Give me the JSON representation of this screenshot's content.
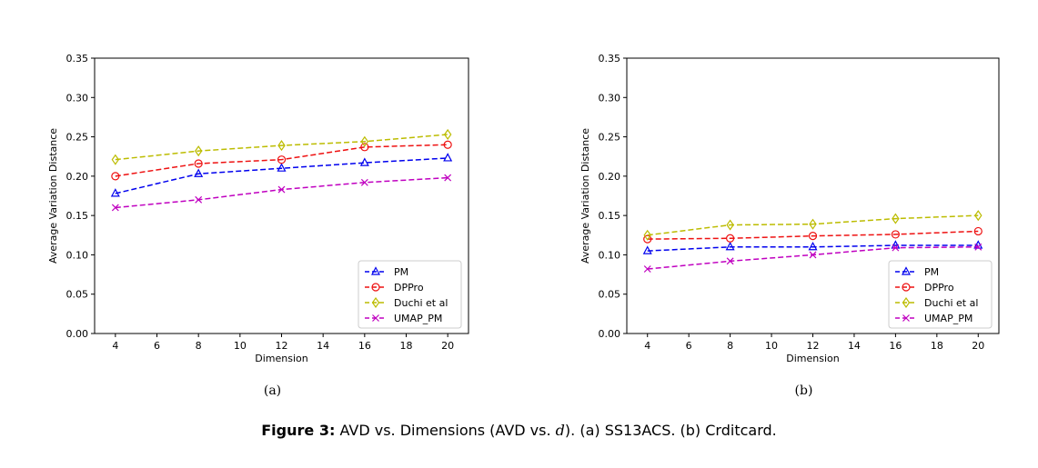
{
  "chart_data": [
    {
      "type": "line",
      "x": [
        4,
        8,
        12,
        16,
        20
      ],
      "xticks": [
        "4",
        "6",
        "8",
        "10",
        "12",
        "14",
        "16",
        "18",
        "20"
      ],
      "yticks": [
        "0.00",
        "0.05",
        "0.10",
        "0.15",
        "0.20",
        "0.25",
        "0.30",
        "0.35"
      ],
      "xlim": [
        3,
        21
      ],
      "ylim": [
        0,
        0.35
      ],
      "xlabel": "Dimension",
      "ylabel": "Average Variation Distance",
      "sublabel": "(a)",
      "legend_position": "lower-right",
      "series": [
        {
          "name": "PM",
          "color": "#0000ee",
          "marker": "triangle",
          "values": [
            0.178,
            0.203,
            0.21,
            0.217,
            0.223
          ]
        },
        {
          "name": "DPPro",
          "color": "#ee1111",
          "marker": "circle",
          "values": [
            0.2,
            0.216,
            0.221,
            0.237,
            0.24
          ]
        },
        {
          "name": "Duchi et al",
          "color": "#bcbc00",
          "marker": "diamond",
          "values": [
            0.221,
            0.232,
            0.239,
            0.244,
            0.253
          ]
        },
        {
          "name": "UMAP_PM",
          "color": "#c000c0",
          "marker": "x",
          "values": [
            0.16,
            0.17,
            0.183,
            0.192,
            0.198
          ]
        }
      ]
    },
    {
      "type": "line",
      "x": [
        4,
        8,
        12,
        16,
        20
      ],
      "xticks": [
        "4",
        "6",
        "8",
        "10",
        "12",
        "14",
        "16",
        "18",
        "20"
      ],
      "yticks": [
        "0.00",
        "0.05",
        "0.10",
        "0.15",
        "0.20",
        "0.25",
        "0.30",
        "0.35"
      ],
      "xlim": [
        3,
        21
      ],
      "ylim": [
        0,
        0.35
      ],
      "xlabel": "Dimension",
      "ylabel": "Average Variation Distance",
      "sublabel": "(b)",
      "legend_position": "lower-right",
      "series": [
        {
          "name": "PM",
          "color": "#0000ee",
          "marker": "triangle",
          "values": [
            0.105,
            0.11,
            0.11,
            0.112,
            0.112
          ]
        },
        {
          "name": "DPPro",
          "color": "#ee1111",
          "marker": "circle",
          "values": [
            0.12,
            0.121,
            0.124,
            0.126,
            0.13
          ]
        },
        {
          "name": "Duchi et al",
          "color": "#bcbc00",
          "marker": "diamond",
          "values": [
            0.125,
            0.138,
            0.139,
            0.146,
            0.15
          ]
        },
        {
          "name": "UMAP_PM",
          "color": "#c000c0",
          "marker": "x",
          "values": [
            0.082,
            0.092,
            0.1,
            0.109,
            0.11
          ]
        }
      ]
    }
  ],
  "caption": {
    "label": "Figure 3:",
    "text_before": " AVD vs. Dimensions (AVD vs. ",
    "var": "d",
    "text_after": "). (a) SS13ACS. (b) Crditcard."
  }
}
